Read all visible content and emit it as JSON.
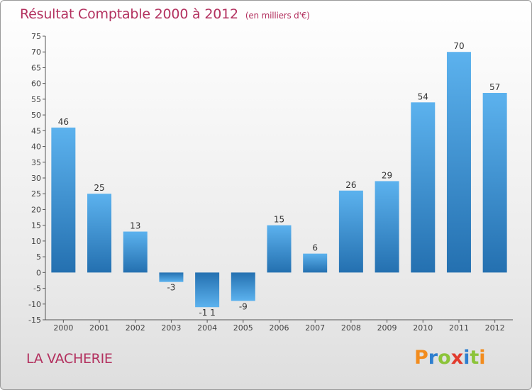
{
  "header": {
    "title": "Résultat Comptable 2000 à 2012",
    "unit": "(en milliers d'€)"
  },
  "commune": "LA VACHERIE",
  "logo": {
    "text": "Proxiti",
    "letters": [
      "P",
      "r",
      "o",
      "x",
      "i",
      "t",
      "i"
    ],
    "colors": [
      "#f28c1e",
      "#2e7fcf",
      "#8cc43a",
      "#e23c2e",
      "#2e7fcf",
      "#8cc43a",
      "#f28c1e"
    ]
  },
  "chart_data": {
    "type": "bar",
    "title": "Résultat Comptable 2000 à 2012",
    "ylabel": "en milliers d'€",
    "xlabel": "",
    "categories": [
      "2000",
      "2001",
      "2002",
      "2003",
      "2004",
      "2005",
      "2006",
      "2007",
      "2008",
      "2009",
      "2010",
      "2011",
      "2012"
    ],
    "values": [
      46,
      25,
      13,
      -3,
      -11,
      -9,
      15,
      6,
      26,
      29,
      54,
      70,
      57
    ],
    "value_labels": [
      "46",
      "25",
      "13",
      "-3",
      "-1 1",
      "-9",
      "15",
      "6",
      "26",
      "29",
      "54",
      "70",
      "57"
    ],
    "ylim": [
      -15,
      75
    ],
    "yticks": [
      -15,
      -10,
      -5,
      0,
      5,
      10,
      15,
      20,
      25,
      30,
      35,
      40,
      45,
      50,
      55,
      60,
      65,
      70,
      75
    ],
    "grid": false,
    "bar_color": "#3d8fd6"
  }
}
